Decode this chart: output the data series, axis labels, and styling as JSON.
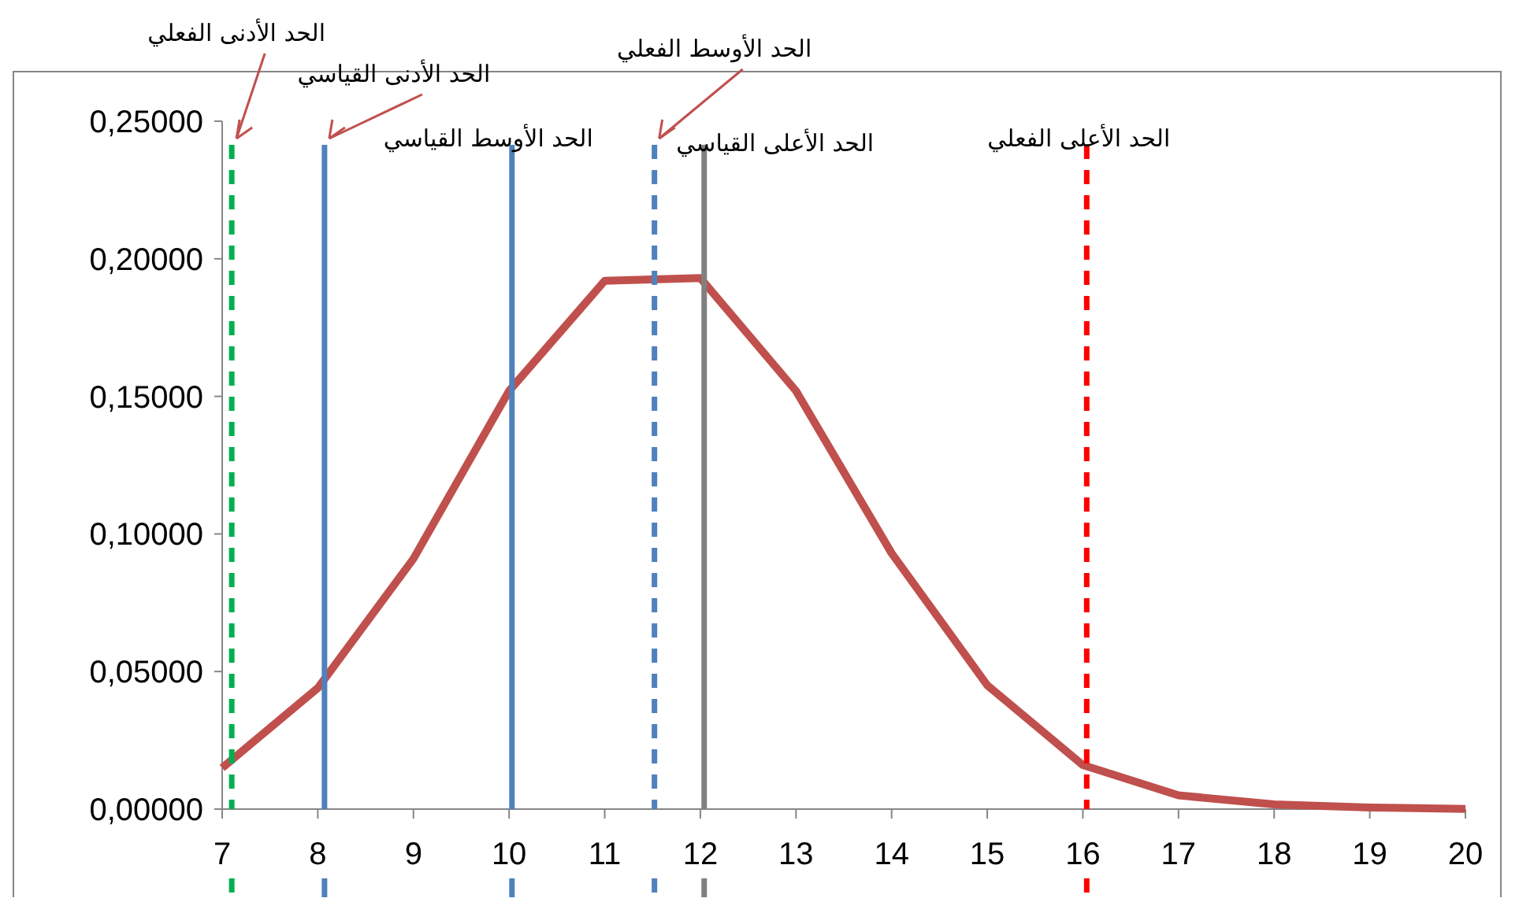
{
  "chart_data": {
    "type": "line",
    "x": [
      7,
      8,
      9,
      10,
      11,
      12,
      13,
      14,
      15,
      16,
      17,
      18,
      19,
      20
    ],
    "series": [
      {
        "color": "#c0504d",
        "values": [
          0.015,
          0.044,
          0.091,
          0.152,
          0.192,
          0.193,
          0.152,
          0.093,
          0.045,
          0.016,
          0.005,
          0.0017,
          0.0006,
          0.0001
        ]
      }
    ],
    "xlim": [
      7,
      20
    ],
    "xticks": [
      7,
      8,
      9,
      10,
      11,
      12,
      13,
      14,
      15,
      16,
      17,
      18,
      19,
      20
    ],
    "ylim": [
      0,
      0.25
    ],
    "yticks": [
      {
        "value": 0,
        "label": "0,00000"
      },
      {
        "value": 0.05,
        "label": "0,05000"
      },
      {
        "value": 0.1,
        "label": "0,10000"
      },
      {
        "value": 0.15,
        "label": "0,15000"
      },
      {
        "value": 0.2,
        "label": "0,20000"
      },
      {
        "value": 0.25,
        "label": "0,25000"
      }
    ],
    "grid": false,
    "marker": "none",
    "line_style": "solid",
    "ref_lines": [
      {
        "axis": "x",
        "value": 7.1,
        "label": "الحد الأدنى الفعلي",
        "color": "#00b050",
        "line_style": "dashed"
      },
      {
        "axis": "x",
        "value": 8.07,
        "label": "الحد الأدنى القياسي",
        "color": "#4f81bd",
        "line_style": "solid"
      },
      {
        "axis": "x",
        "value": 10.03,
        "label": "الحد الأوسط القياسي",
        "color": "#4f81bd",
        "line_style": "solid"
      },
      {
        "axis": "x",
        "value": 11.52,
        "label": "الحد الأوسط الفعلي",
        "color": "#4f81bd",
        "line_style": "dashed"
      },
      {
        "axis": "x",
        "value": 12.04,
        "label": "الحد الأعلى القياسي",
        "color": "#808080",
        "line_style": "solid"
      },
      {
        "axis": "x",
        "value": 16.04,
        "label": "الحد الأعلى الفعلي",
        "color": "#ff0000",
        "line_style": "dashed"
      }
    ]
  }
}
